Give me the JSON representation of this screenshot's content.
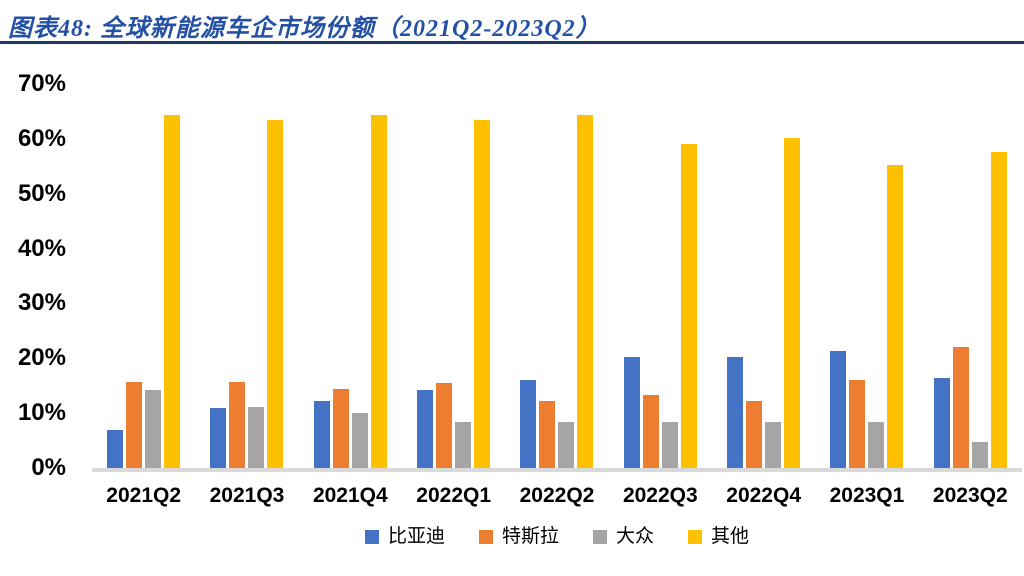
{
  "figure": {
    "title": "图表48: 全球新能源车企市场份额（2021Q2-2023Q2）"
  },
  "colors": {
    "title_blue": "#2451A5",
    "rule_navy": "#1F3864",
    "axis_line_gray": "#D9D9D9",
    "text_black": "#000000",
    "series_blue": "#4472C4",
    "series_orange": "#ED7D31",
    "series_gray": "#A5A5A5",
    "series_yellow": "#FFC000"
  },
  "chart_data": {
    "type": "bar",
    "title": "全球新能源车企市场份额（2021Q2-2023Q2）",
    "xlabel": "",
    "ylabel": "",
    "ylim": [
      0,
      70
    ],
    "ytick_values": [
      0,
      10,
      20,
      30,
      40,
      50,
      60,
      70
    ],
    "ytick_labels": [
      "0%",
      "10%",
      "20%",
      "30%",
      "40%",
      "50%",
      "60%",
      "70%"
    ],
    "grid": false,
    "legend_position": "bottom",
    "categories": [
      "2021Q2",
      "2021Q3",
      "2021Q4",
      "2022Q1",
      "2022Q2",
      "2022Q3",
      "2022Q4",
      "2023Q1",
      "2023Q2"
    ],
    "series": [
      {
        "name": "比亚迪",
        "color": "#4472C4",
        "values": [
          7.0,
          11.0,
          12.2,
          14.3,
          16.0,
          20.3,
          20.3,
          21.3,
          16.4
        ]
      },
      {
        "name": "特斯拉",
        "color": "#ED7D31",
        "values": [
          15.6,
          15.6,
          14.4,
          15.5,
          12.2,
          13.3,
          12.2,
          16.0,
          22.1
        ]
      },
      {
        "name": "大众",
        "color": "#A5A5A5",
        "values": [
          14.3,
          11.2,
          10.1,
          8.3,
          8.3,
          8.3,
          8.3,
          8.3,
          4.7
        ]
      },
      {
        "name": "其他",
        "color": "#FFC000",
        "values": [
          64.4,
          63.4,
          64.4,
          63.4,
          64.4,
          59.1,
          60.2,
          55.2,
          57.6
        ]
      }
    ]
  }
}
